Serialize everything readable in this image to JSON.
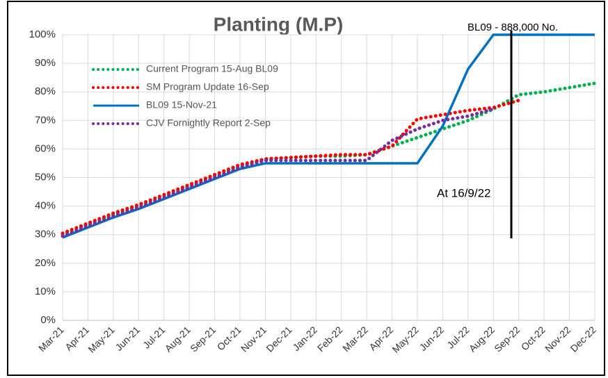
{
  "chart_data": {
    "type": "line",
    "title": "Planting (M.P)",
    "categories": [
      "Mar-21",
      "Apr-21",
      "May-21",
      "Jun-21",
      "Jul-21",
      "Aug-21",
      "Sep-21",
      "Oct-21",
      "Nov-21",
      "Dec-21",
      "Jan-22",
      "Feb-22",
      "Mar-22",
      "Apr-22",
      "May-22",
      "Jun-22",
      "Jul-22",
      "Aug-22",
      "Sep-22",
      "Oct-22",
      "Nov-22",
      "Dec-22"
    ],
    "series": [
      {
        "name": "Current Program 15-Aug BL09",
        "color": "#00b050",
        "style": "dotted",
        "values": [
          30,
          33.5,
          37,
          40,
          43.5,
          47,
          50.5,
          54,
          56.5,
          57,
          57.5,
          57.5,
          58,
          61,
          64,
          67,
          70,
          74,
          79,
          80,
          81.5,
          83
        ]
      },
      {
        "name": "SM Program Update 16-Sep",
        "color": "#ff0000",
        "style": "dotted",
        "values": [
          30.5,
          34,
          37.5,
          40.5,
          44,
          47.5,
          51,
          54.5,
          56.5,
          57,
          57.5,
          58,
          58,
          61,
          70.5,
          72,
          73.5,
          74.5,
          77,
          null,
          null,
          null
        ]
      },
      {
        "name": "BL09 15-Nov-21",
        "color": "#0070c0",
        "style": "solid",
        "values": [
          29,
          32.5,
          36,
          39,
          42.5,
          46,
          49.5,
          53,
          55,
          55,
          55,
          55,
          55,
          55,
          55,
          68,
          88,
          100,
          100,
          100,
          100,
          100
        ]
      },
      {
        "name": "CJV Fornightly Report 2-Sep",
        "color": "#7030a0",
        "style": "dotted",
        "values": [
          29.5,
          33,
          36.5,
          39.5,
          43,
          46.5,
          50,
          53.5,
          56,
          56,
          56,
          56,
          56,
          63,
          67,
          70,
          71.5,
          74,
          null,
          null,
          null,
          null
        ]
      }
    ],
    "ylim": [
      0,
      100
    ],
    "yticks": [
      {
        "value": 0,
        "label": "0%"
      },
      {
        "value": 10,
        "label": "10%"
      },
      {
        "value": 20,
        "label": "20%"
      },
      {
        "value": 30,
        "label": "30%"
      },
      {
        "value": 40,
        "label": "40%"
      },
      {
        "value": 50,
        "label": "50%"
      },
      {
        "value": 60,
        "label": "60%"
      },
      {
        "value": 70,
        "label": "70%"
      },
      {
        "value": 80,
        "label": "80%"
      },
      {
        "value": 90,
        "label": "90%"
      },
      {
        "value": 100,
        "label": "100%"
      }
    ],
    "grid": true,
    "legend": "top-left",
    "annotations": [
      "BL09 - 888,000 No.",
      "At 16/9/22"
    ]
  }
}
